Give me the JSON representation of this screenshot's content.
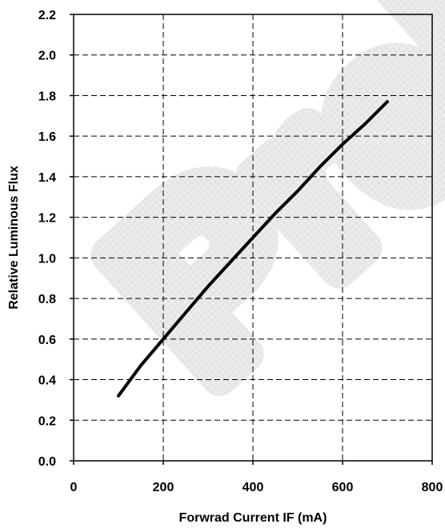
{
  "chart_data": {
    "type": "line",
    "xlabel": "Forwrad Current IF (mA)",
    "ylabel": "Relative Luminous Flux",
    "xlim": [
      0,
      800
    ],
    "ylim": [
      0.0,
      2.2
    ],
    "x_ticks": [
      "0",
      "200",
      "400",
      "600",
      "800"
    ],
    "y_ticks": [
      "0.0",
      "0.2",
      "0.4",
      "0.6",
      "0.8",
      "1.0",
      "1.2",
      "1.4",
      "1.6",
      "1.8",
      "2.0",
      "2.2"
    ],
    "grid": true,
    "grid_style": "dashed",
    "watermark_text": "Preli",
    "series": [
      {
        "color": "#000000",
        "x": [
          100,
          150,
          200,
          250,
          300,
          350,
          400,
          450,
          500,
          550,
          600,
          650,
          700
        ],
        "y": [
          0.32,
          0.47,
          0.6,
          0.73,
          0.86,
          0.98,
          1.1,
          1.22,
          1.33,
          1.45,
          1.56,
          1.66,
          1.77
        ]
      }
    ]
  }
}
